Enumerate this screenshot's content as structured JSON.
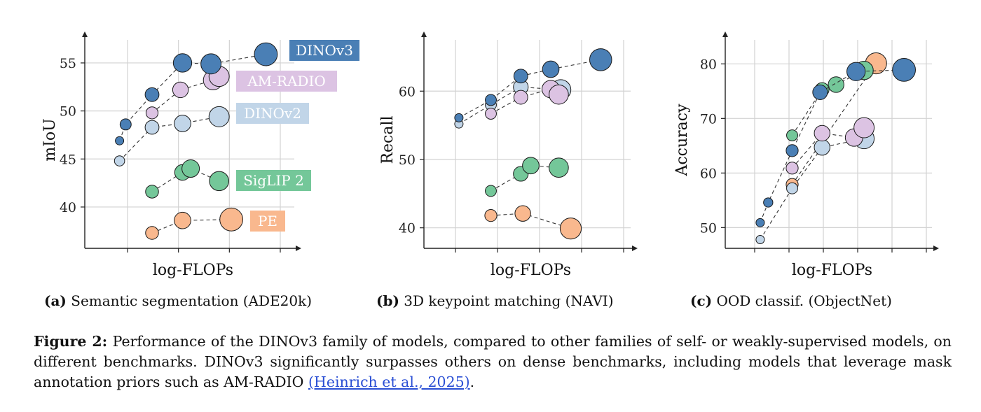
{
  "colors": {
    "DINOv3": "#4a7fb5",
    "AM-RADIO": "#dcc3e3",
    "DINOv2": "#c1d5e8",
    "SigLIP 2": "#74c799",
    "PE": "#f9b88e"
  },
  "chart_data": [
    {
      "type": "scatter",
      "id": "a",
      "subcaption_label": "(a)",
      "subcaption_text": "Semantic segmentation (ADE20k)",
      "xlabel": "log-FLOPs",
      "ylabel": "mIoU",
      "yticks": [
        40,
        45,
        50,
        55
      ],
      "ylim": [
        35.7,
        57.4
      ],
      "xlim": [
        0,
        10
      ],
      "grid": true,
      "legend": "inline-labels-right",
      "series": [
        {
          "name": "DINOv3",
          "x": [
            1.4,
            1.7,
            3.0,
            4.5,
            5.9,
            8.6
          ],
          "y": [
            46.9,
            48.6,
            51.7,
            55.0,
            54.9,
            55.9
          ],
          "size": [
            1,
            1.3,
            1.6,
            2.1,
            2.3,
            2.6
          ]
        },
        {
          "name": "AM-RADIO",
          "x": [
            3.0,
            4.4,
            6.0,
            6.3
          ],
          "y": [
            49.8,
            52.2,
            53.2,
            53.6
          ],
          "size": [
            1.4,
            1.8,
            2.2,
            2.3
          ]
        },
        {
          "name": "DINOv2",
          "x": [
            1.4,
            3.0,
            4.5,
            6.3
          ],
          "y": [
            44.8,
            48.3,
            48.7,
            49.4
          ],
          "size": [
            1.2,
            1.6,
            1.9,
            2.3
          ]
        },
        {
          "name": "SigLIP 2",
          "x": [
            3.0,
            4.5,
            4.9,
            6.3
          ],
          "y": [
            41.6,
            43.6,
            44.0,
            42.7
          ],
          "size": [
            1.5,
            1.8,
            2.0,
            2.2
          ]
        },
        {
          "name": "PE",
          "x": [
            3.0,
            4.5,
            6.9
          ],
          "y": [
            37.3,
            38.6,
            38.7
          ],
          "size": [
            1.5,
            1.9,
            2.6
          ]
        }
      ]
    },
    {
      "type": "scatter",
      "id": "b",
      "subcaption_label": "(b)",
      "subcaption_text": "3D keypoint matching (NAVI)",
      "xlabel": "log-FLOPs",
      "ylabel": "Recall",
      "yticks": [
        40,
        50,
        60
      ],
      "ylim": [
        37,
        67.5
      ],
      "xlim": [
        0,
        10
      ],
      "grid": true,
      "legend": "none",
      "series": [
        {
          "name": "DINOv3",
          "x": [
            1.4,
            3.0,
            4.5,
            6.0,
            8.5
          ],
          "y": [
            56.1,
            58.7,
            62.2,
            63.2,
            64.6
          ],
          "size": [
            1,
            1.3,
            1.6,
            1.9,
            2.5
          ]
        },
        {
          "name": "AM-RADIO",
          "x": [
            3.0,
            4.5,
            6.0,
            6.4
          ],
          "y": [
            56.7,
            59.1,
            60.3,
            59.5
          ],
          "size": [
            1.3,
            1.6,
            2.0,
            2.2
          ]
        },
        {
          "name": "DINOv2",
          "x": [
            1.4,
            3.0,
            4.5,
            6.5
          ],
          "y": [
            55.2,
            58.0,
            60.6,
            60.2
          ],
          "size": [
            1,
            1.3,
            1.7,
            2.3
          ]
        },
        {
          "name": "SigLIP 2",
          "x": [
            3.0,
            4.5,
            5.0,
            6.4
          ],
          "y": [
            45.4,
            47.9,
            49.1,
            48.8
          ],
          "size": [
            1.3,
            1.7,
            1.9,
            2.2
          ]
        },
        {
          "name": "PE",
          "x": [
            3.0,
            4.6,
            7.0
          ],
          "y": [
            41.8,
            42.1,
            39.9
          ],
          "size": [
            1.4,
            1.8,
            2.4
          ]
        }
      ]
    },
    {
      "type": "scatter",
      "id": "c",
      "subcaption_label": "(c)",
      "subcaption_text": "OOD classif. (ObjectNet)",
      "xlabel": "log-FLOPs",
      "ylabel": "Accuracy",
      "yticks": [
        50,
        60,
        70,
        80
      ],
      "ylim": [
        46.2,
        84.4
      ],
      "xlim": [
        0,
        10
      ],
      "grid": true,
      "legend": "none",
      "series": [
        {
          "name": "DINOv3",
          "x": [
            1.4,
            1.8,
            3.0,
            4.4,
            6.2,
            8.6
          ],
          "y": [
            50.9,
            54.6,
            64.1,
            74.8,
            78.6,
            78.9
          ],
          "size": [
            1,
            1.1,
            1.4,
            1.7,
            2.1,
            2.6
          ]
        },
        {
          "name": "AM-RADIO",
          "x": [
            3.0,
            4.5,
            6.1,
            6.6
          ],
          "y": [
            60.9,
            67.3,
            66.5,
            68.3
          ],
          "size": [
            1.4,
            1.8,
            2.0,
            2.3
          ]
        },
        {
          "name": "DINOv2",
          "x": [
            1.4,
            3.0,
            4.5,
            6.6
          ],
          "y": [
            47.8,
            57.2,
            64.7,
            66.3
          ],
          "size": [
            1,
            1.3,
            1.8,
            2.3
          ]
        },
        {
          "name": "SigLIP 2",
          "x": [
            3.0,
            4.5,
            5.2,
            6.6
          ],
          "y": [
            66.9,
            75.3,
            76.2,
            78.8
          ],
          "size": [
            1.3,
            1.6,
            1.8,
            2.1
          ]
        },
        {
          "name": "PE",
          "x": [
            3.0,
            7.2
          ],
          "y": [
            57.9,
            80.1
          ],
          "size": [
            1.4,
            2.4
          ]
        }
      ]
    }
  ],
  "legend_labels": [
    "DINOv3",
    "AM-RADIO",
    "DINOv2",
    "SigLIP 2",
    "PE"
  ],
  "caption": {
    "label": "Figure 2:",
    "text": " Performance of the DINOv3 family of models, compared to other families of self- or weakly-supervised models, on different benchmarks. DINOv3 significantly surpasses others on dense benchmarks, including models that leverage mask annotation priors such as AM-RADIO ",
    "citation": "(Heinrich et al., 2025)",
    "end": "."
  }
}
